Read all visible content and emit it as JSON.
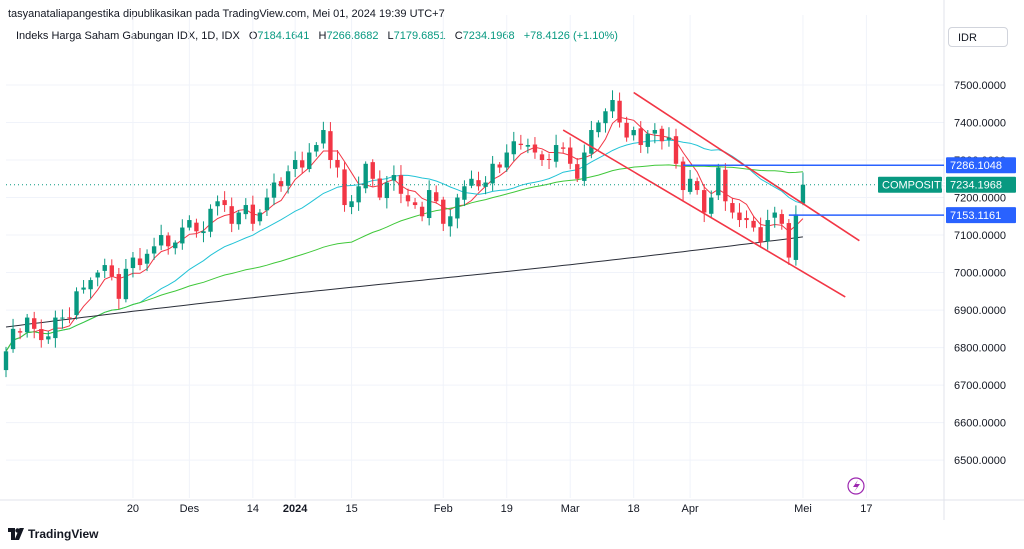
{
  "header": {
    "publisher": "tasyanataliapangestika dipublikasikan pada TradingView.com, Mei 01, 2024 19:39 UTC+7",
    "symbol": "Indeks Harga Saham Gabungan IDX, 1D, IDX",
    "open_label": "O",
    "open": "7184.1641",
    "high_label": "H",
    "high": "7266.8682",
    "low_label": "L",
    "low": "7179.6851",
    "close_label": "C",
    "close": "7234.1968",
    "change": "+78.4126 (+1.10%)",
    "currency": "IDR"
  },
  "footer": {
    "brand": "TradingView"
  },
  "colors": {
    "up": "#089981",
    "down": "#f23645",
    "ma_red": "#f23645",
    "ma_cyan": "#22c3d6",
    "ma_green": "#40c83a",
    "ma_black": "#2a2e39",
    "channel": "#f23645",
    "hline": "#2962ff",
    "grid": "#f0f3fa"
  },
  "chart_data": {
    "type": "candlestick",
    "y_axis": {
      "ticks": [
        "7500.0000",
        "7400.0000",
        "7300.0000",
        "7200.0000",
        "7100.0000",
        "7000.0000",
        "6900.0000",
        "6800.0000",
        "6700.0000",
        "6600.0000",
        "6500.0000"
      ],
      "tick_values": [
        7500,
        7400,
        7300,
        7200,
        7100,
        7000,
        6900,
        6800,
        6700,
        6600,
        6500
      ],
      "ylim": [
        6415,
        7580
      ]
    },
    "x_axis": {
      "labels": [
        {
          "text": "20",
          "bar": 18,
          "bold": false
        },
        {
          "text": "Des",
          "bar": 26,
          "bold": false
        },
        {
          "text": "14",
          "bar": 35,
          "bold": false
        },
        {
          "text": "2024",
          "bar": 41,
          "bold": true
        },
        {
          "text": "15",
          "bar": 49,
          "bold": false
        },
        {
          "text": "Feb",
          "bar": 62,
          "bold": false
        },
        {
          "text": "19",
          "bar": 71,
          "bold": false
        },
        {
          "text": "Mar",
          "bar": 80,
          "bold": false
        },
        {
          "text": "18",
          "bar": 89,
          "bold": false
        },
        {
          "text": "Apr",
          "bar": 97,
          "bold": false
        },
        {
          "text": "Mei",
          "bar": 113,
          "bold": false
        },
        {
          "text": "17",
          "bar": 122,
          "bold": false
        }
      ],
      "bar_range": [
        0,
        133
      ]
    },
    "closes": [
      6790,
      6850,
      6840,
      6880,
      6850,
      6820,
      6830,
      6880,
      6880,
      6880,
      6950,
      6960,
      6980,
      7000,
      7020,
      6990,
      6930,
      7010,
      7040,
      7020,
      7050,
      7070,
      7100,
      7070,
      7080,
      7120,
      7140,
      7110,
      7110,
      7170,
      7190,
      7180,
      7130,
      7160,
      7180,
      7130,
      7160,
      7200,
      7240,
      7230,
      7270,
      7300,
      7280,
      7320,
      7340,
      7380,
      7300,
      7280,
      7180,
      7190,
      7230,
      7290,
      7250,
      7200,
      7240,
      7260,
      7210,
      7190,
      7180,
      7150,
      7220,
      7190,
      7130,
      7150,
      7200,
      7230,
      7250,
      7230,
      7240,
      7290,
      7280,
      7320,
      7350,
      7340,
      7340,
      7320,
      7300,
      7300,
      7340,
      7330,
      7290,
      7250,
      7320,
      7380,
      7400,
      7430,
      7460,
      7400,
      7360,
      7380,
      7340,
      7370,
      7380,
      7350,
      7360,
      7290,
      7220,
      7250,
      7220,
      7160,
      7200,
      7280,
      7190,
      7160,
      7140,
      7140,
      7120,
      7080,
      7140,
      7160,
      7130,
      7040,
      7155,
      7234
    ],
    "moving_averages": [
      {
        "period": 5,
        "color_key": "ma_red"
      },
      {
        "period": 20,
        "color_key": "ma_cyan"
      },
      {
        "period": 50,
        "color_key": "ma_green"
      },
      {
        "period": 200,
        "color_key": "ma_black"
      }
    ],
    "channel_lines": [
      {
        "from": {
          "bar": 89,
          "value": 7480
        },
        "to": {
          "bar": 121,
          "value": 7085
        }
      },
      {
        "from": {
          "bar": 79,
          "value": 7380
        },
        "to": {
          "bar": 119,
          "value": 6935
        }
      }
    ],
    "horizontal_lines": [
      {
        "label": "7286.1048",
        "value": 7286.1048,
        "from_bar": 96
      },
      {
        "label": "7153.1161",
        "value": 7153.1161,
        "from_bar": 111
      }
    ],
    "last_price": {
      "name": "COMPOSITE",
      "value": 7234.1968,
      "label": "7234.1968"
    }
  }
}
